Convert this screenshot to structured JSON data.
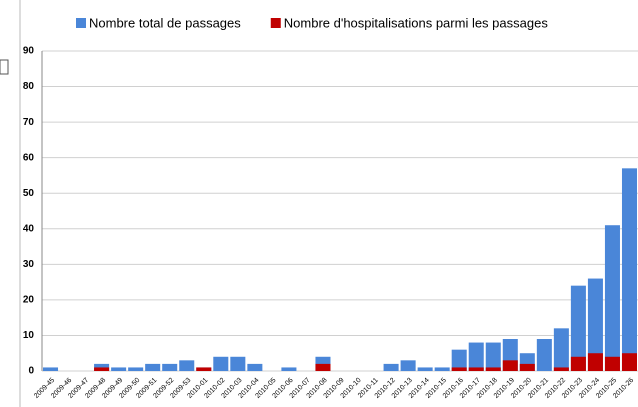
{
  "chart_data": {
    "type": "bar",
    "categories": [
      "2009-45",
      "2009-46",
      "2009-47",
      "2009-48",
      "2009-49",
      "2009-50",
      "2009-51",
      "2009-52",
      "2009-53",
      "2010-01",
      "2010-02",
      "2010-03",
      "2010-04",
      "2010-05",
      "2010-06",
      "2010-07",
      "2010-08",
      "2010-09",
      "2010-10",
      "2010-11",
      "2010-12",
      "2010-13",
      "2010-14",
      "2010-15",
      "2010-16",
      "2010-17",
      "2010-18",
      "2010-19",
      "2010-20",
      "2010-21",
      "2010-22",
      "2010-23",
      "2010-24",
      "2010-25",
      "2010-26"
    ],
    "series": [
      {
        "name": "Nombre total de passages",
        "color": "#4a86d8",
        "values": [
          1,
          0,
          0,
          2,
          1,
          1,
          2,
          2,
          3,
          1,
          4,
          4,
          2,
          0,
          1,
          0,
          4,
          0,
          0,
          0,
          2,
          3,
          1,
          1,
          6,
          8,
          8,
          9,
          5,
          9,
          12,
          24,
          26,
          41,
          57
        ]
      },
      {
        "name": "Nombre d'hospitalisations parmi les passages",
        "color": "#c00000",
        "values": [
          0,
          0,
          0,
          1,
          0,
          0,
          0,
          0,
          0,
          1,
          0,
          0,
          0,
          0,
          0,
          0,
          2,
          0,
          0,
          0,
          0,
          0,
          0,
          0,
          1,
          1,
          1,
          3,
          2,
          0,
          1,
          4,
          5,
          4,
          5
        ]
      }
    ],
    "ylim": [
      0,
      90
    ],
    "yticks": [
      0,
      10,
      20,
      30,
      40,
      50,
      60,
      70,
      80,
      90
    ],
    "grid": true,
    "legend": "top"
  }
}
